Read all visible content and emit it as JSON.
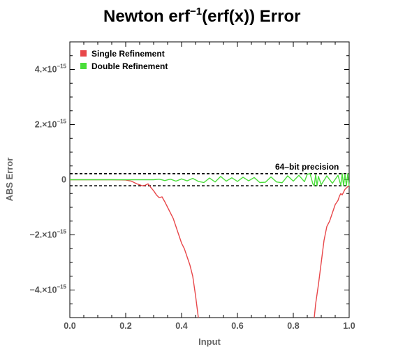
{
  "chart_data": {
    "type": "line",
    "title": "Newton erf",
    "title_sup": "−1",
    "title_rest": "(erf(x)) Error",
    "xlabel": "Input",
    "ylabel": "ABS Error",
    "xlim": [
      0,
      1
    ],
    "ylim": [
      -5e-15,
      5e-15
    ],
    "x_ticks": [
      "0.0",
      "0.2",
      "0.4",
      "0.6",
      "0.8",
      "1.0"
    ],
    "y_ticks": [
      {
        "value": 4e-15,
        "mantissa": "4.×10",
        "exp": "−15"
      },
      {
        "value": 2e-15,
        "mantissa": "2.×10",
        "exp": "−15"
      },
      {
        "value": 0,
        "mantissa": "0",
        "exp": ""
      },
      {
        "value": -2e-15,
        "mantissa": "−2.×10",
        "exp": "−15"
      },
      {
        "value": -4e-15,
        "mantissa": "−4.×10",
        "exp": "−15"
      }
    ],
    "legend_position": "top-left",
    "reference_lines": [
      {
        "y": 2.2e-16,
        "style": "dashed",
        "color": "#000000"
      },
      {
        "y": -2.2e-16,
        "style": "dashed",
        "color": "#000000"
      }
    ],
    "annotation": "64–bit precision",
    "series": [
      {
        "name": "Single Refinement",
        "color": "#e8474a",
        "x": [
          0.0,
          0.05,
          0.1,
          0.15,
          0.2,
          0.22,
          0.24,
          0.26,
          0.27,
          0.28,
          0.29,
          0.3,
          0.31,
          0.32,
          0.33,
          0.34,
          0.35,
          0.36,
          0.37,
          0.38,
          0.39,
          0.4,
          0.41,
          0.42,
          0.43,
          0.44,
          0.45,
          0.455,
          0.46
        ],
        "values": [
          0,
          0,
          0,
          0,
          -1e-17,
          -5e-17,
          -1.5e-16,
          -2.2e-16,
          -2e-16,
          -1.5e-16,
          -2.8e-16,
          -4e-16,
          -5.5e-16,
          -6.5e-16,
          -6.2e-16,
          -8e-16,
          -1e-15,
          -1.2e-15,
          -1.4e-15,
          -1.7e-15,
          -2e-15,
          -2.3e-15,
          -2.5e-15,
          -2.8e-15,
          -3.1e-15,
          -3.5e-15,
          -4.2e-15,
          -4.6e-15,
          -5e-15
        ]
      },
      {
        "name": "Single Refinement",
        "color": "#e8474a",
        "x": [
          0.875,
          0.88,
          0.89,
          0.9,
          0.91,
          0.92,
          0.93,
          0.94,
          0.95,
          0.96,
          0.965,
          0.97,
          0.975,
          0.98,
          0.985,
          0.99,
          0.995,
          1.0
        ],
        "values": [
          -5e-15,
          -4.5e-15,
          -3.8e-15,
          -3e-15,
          -2.2e-15,
          -1.7e-15,
          -1.5e-15,
          -1.2e-15,
          -9e-16,
          -7.5e-16,
          -6e-16,
          -5e-16,
          -5.5e-16,
          -4.5e-16,
          -3.5e-16,
          -3e-16,
          -2.5e-16,
          -2.2e-16
        ]
      },
      {
        "name": "Double Refinement",
        "color": "#4ade3a",
        "x": [
          0.0,
          0.05,
          0.1,
          0.15,
          0.2,
          0.25,
          0.3,
          0.32,
          0.34,
          0.36,
          0.38,
          0.4,
          0.42,
          0.44,
          0.46,
          0.48,
          0.5,
          0.52,
          0.54,
          0.56,
          0.58,
          0.6,
          0.62,
          0.64,
          0.66,
          0.68,
          0.7,
          0.72,
          0.74,
          0.76,
          0.78,
          0.8,
          0.82,
          0.84,
          0.85,
          0.86,
          0.87,
          0.875,
          0.88,
          0.885,
          0.89,
          0.9,
          0.92,
          0.94,
          0.96,
          0.97,
          0.975,
          0.98,
          0.985,
          0.99,
          0.995,
          1.0
        ],
        "values": [
          0,
          0,
          0,
          0,
          0,
          0,
          0,
          2e-17,
          -3e-17,
          2e-17,
          -5e-17,
          3e-17,
          -4e-17,
          5e-17,
          -6e-17,
          -1e-16,
          6e-17,
          -8e-17,
          1.2e-16,
          -5e-17,
          7e-17,
          -6e-17,
          9e-17,
          -4e-17,
          8e-17,
          -1e-16,
          -9e-17,
          1e-16,
          -8e-17,
          -1.1e-16,
          1.4e-16,
          -5e-17,
          1.6e-16,
          -7e-17,
          2e-16,
          2.2e-16,
          -1.5e-16,
          -2.2e-16,
          1.8e-16,
          -2.2e-16,
          1.2e-16,
          -1.8e-16,
          1.4e-16,
          -1.3e-16,
          1.6e-16,
          -2e-16,
          2.2e-16,
          -2.2e-16,
          2e-16,
          -2.2e-16,
          2.2e-16,
          -2.2e-16
        ]
      }
    ]
  }
}
